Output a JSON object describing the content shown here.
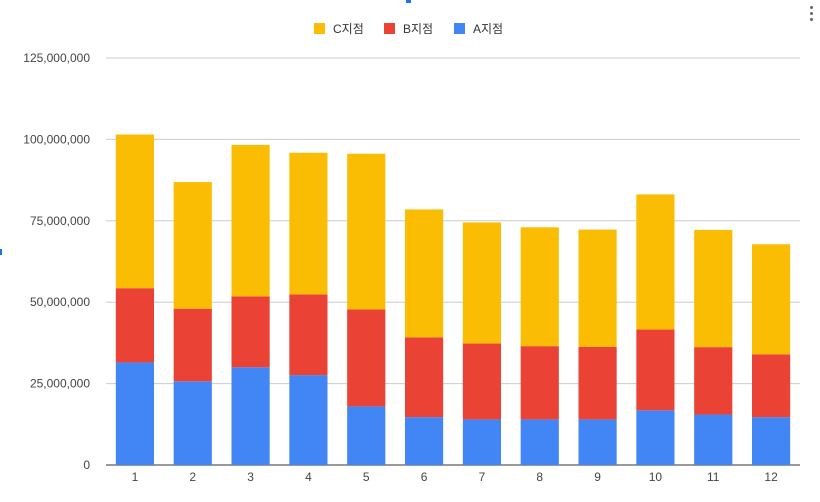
{
  "chart_data": {
    "type": "bar",
    "stacked": true,
    "title": "",
    "xlabel": "",
    "ylabel": "",
    "categories": [
      "1",
      "2",
      "3",
      "4",
      "5",
      "6",
      "7",
      "8",
      "9",
      "10",
      "11",
      "12"
    ],
    "ylim": [
      0,
      125000000
    ],
    "yticks": [
      0,
      25000000,
      50000000,
      75000000,
      100000000,
      125000000
    ],
    "ytick_labels": [
      "0",
      "25,000,000",
      "50,000,000",
      "75,000,000",
      "100,000,000",
      "125,000,000"
    ],
    "grid": true,
    "legend_position": "top",
    "series": [
      {
        "name": "A지점",
        "color": "#4285f4",
        "values": [
          31500000,
          25700000,
          30000000,
          27600000,
          18000000,
          14700000,
          14000000,
          14000000,
          14000000,
          16800000,
          15500000,
          14700000
        ]
      },
      {
        "name": "B지점",
        "color": "#ea4335",
        "values": [
          22800000,
          22300000,
          21800000,
          24800000,
          29800000,
          24500000,
          23300000,
          22500000,
          22300000,
          24800000,
          20700000,
          19300000
        ]
      },
      {
        "name": "C지점",
        "color": "#fbbc04",
        "values": [
          47200000,
          38900000,
          46500000,
          43500000,
          47800000,
          39300000,
          37200000,
          36500000,
          36000000,
          41500000,
          36000000,
          33800000
        ]
      }
    ],
    "legend_order": [
      "C지점",
      "B지점",
      "A지점"
    ]
  }
}
